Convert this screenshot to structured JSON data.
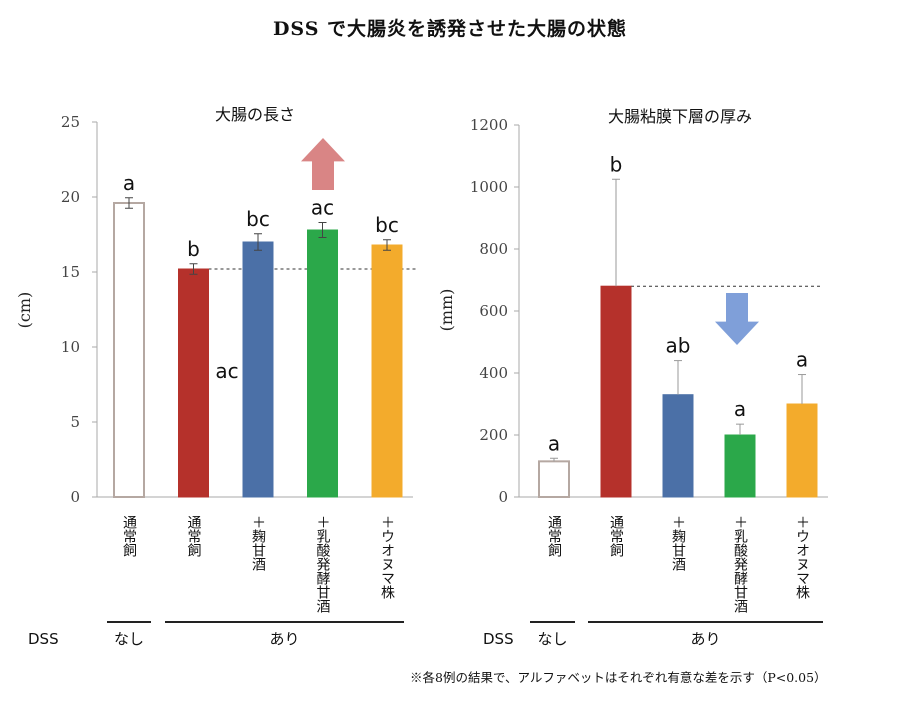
{
  "page_title": "DSS で大腸炎を誘発させた大腸の状態",
  "footnote": "※各8例の結果で、アルファベットはそれぞれ有意な差を示す（P<0.05）",
  "colors": {
    "normal_fill": "#ffffff",
    "normal_stroke": "#b5a8a2",
    "dss_control": "#b5312b",
    "koji_amazake": "#4b70a7",
    "lactic_amazake": "#2ba84a",
    "uonuma": "#f3ab2c",
    "up_arrow": "#d98585",
    "down_arrow": "#7f9fd9",
    "axis": "#aaaaaa"
  },
  "group_labels": {
    "dss_label": "DSS",
    "without": "なし",
    "with": "あり"
  },
  "chart_data": [
    {
      "type": "bar",
      "title": "大腸の長さ",
      "ylabel": "(cm)",
      "ylim": [
        0,
        25
      ],
      "yticks": [
        "0",
        "5",
        "10",
        "15",
        "20",
        "25"
      ],
      "categories": [
        "通常飼",
        "通常飼",
        "＋麹甘酒",
        "＋乳酸発酵甘酒",
        "＋ウオヌマ株"
      ],
      "dss": [
        "なし",
        "あり",
        "あり",
        "あり",
        "あり"
      ],
      "values": [
        19.6,
        15.2,
        17.0,
        17.8,
        16.8
      ],
      "errors": [
        0.35,
        0.35,
        0.55,
        0.5,
        0.35
      ],
      "significance": [
        "a",
        "b",
        "bc",
        "ac",
        "bc"
      ],
      "extra_annotation": "ac",
      "reference_line": 15.2,
      "arrow": "up"
    },
    {
      "type": "bar",
      "title": "大腸粘膜下層の厚み",
      "ylabel": "(mm)",
      "ylim": [
        0,
        1200
      ],
      "yticks": [
        "0",
        "200",
        "400",
        "600",
        "800",
        "1000",
        "1200"
      ],
      "categories": [
        "通常飼",
        "通常飼",
        "＋麹甘酒",
        "＋乳酸発酵甘酒",
        "＋ウオヌマ株"
      ],
      "dss": [
        "なし",
        "あり",
        "あり",
        "あり",
        "あり"
      ],
      "values": [
        115,
        680,
        330,
        200,
        300
      ],
      "errors": [
        10,
        345,
        110,
        35,
        95
      ],
      "significance": [
        "a",
        "b",
        "ab",
        "a",
        "a"
      ],
      "reference_line": 680,
      "arrow": "down"
    }
  ]
}
